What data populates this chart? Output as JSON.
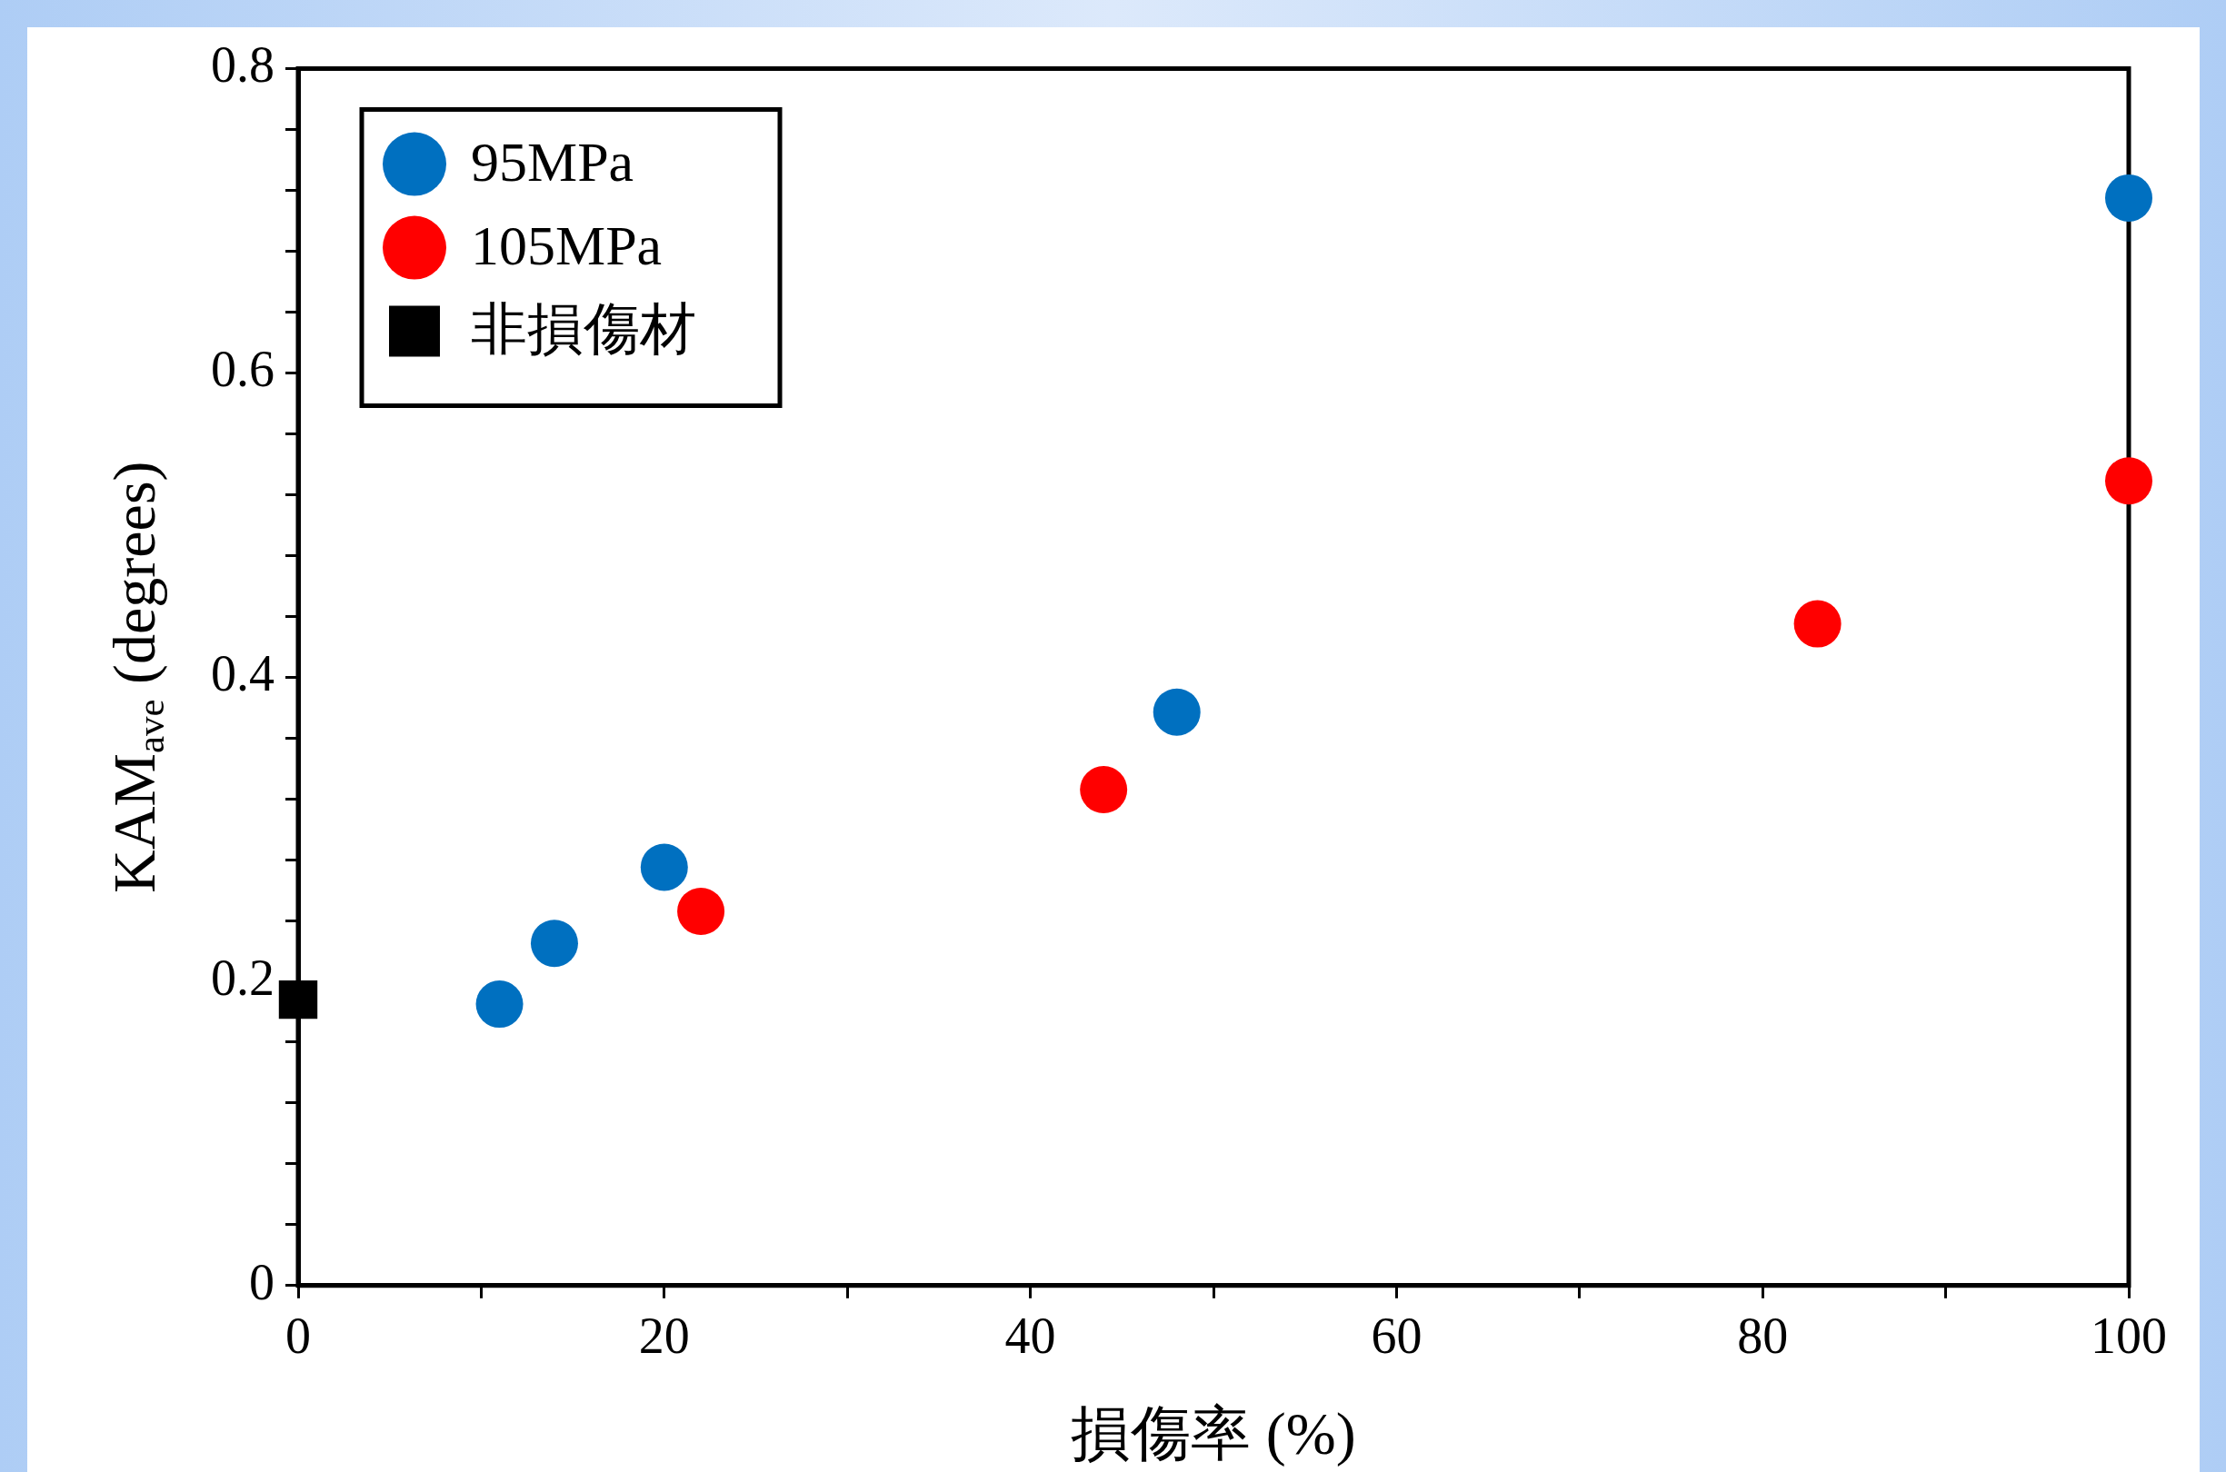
{
  "chart_data": {
    "type": "scatter",
    "xlabel": "損傷率 (%)",
    "ylabel": "KAM$_{ave}$ (degrees)",
    "xlim": [
      0,
      100
    ],
    "ylim": [
      0,
      0.8
    ],
    "xticks": [
      0,
      {
        "value": 10,
        "label": null
      },
      20,
      {
        "value": 30,
        "label": null
      },
      40,
      {
        "value": 50,
        "label": null
      },
      60,
      {
        "value": 70,
        "label": null
      },
      80,
      {
        "value": 90,
        "label": null
      },
      100
    ],
    "yticks": [
      0,
      {
        "value": 0.04,
        "label": null
      },
      {
        "value": 0.08,
        "label": null
      },
      {
        "value": 0.12,
        "label": null
      },
      {
        "value": 0.16,
        "label": null
      },
      0.2,
      {
        "value": 0.24,
        "label": null
      },
      {
        "value": 0.28,
        "label": null
      },
      {
        "value": 0.32,
        "label": null
      },
      {
        "value": 0.36,
        "label": null
      },
      0.4,
      {
        "value": 0.44,
        "label": null
      },
      {
        "value": 0.48,
        "label": null
      },
      {
        "value": 0.52,
        "label": null
      },
      {
        "value": 0.56,
        "label": null
      },
      0.6,
      {
        "value": 0.64,
        "label": null
      },
      {
        "value": 0.68,
        "label": null
      },
      {
        "value": 0.72,
        "label": null
      },
      {
        "value": 0.76,
        "label": null
      },
      0.8
    ],
    "grid": false,
    "legend": "top left",
    "series": [
      {
        "name": "95MPa",
        "color": "#0070c0",
        "marker": "circle",
        "x": [
          11,
          14,
          20,
          48,
          100
        ],
        "values": [
          0.185,
          0.225,
          0.275,
          0.377,
          0.715
        ]
      },
      {
        "name": "105MPa",
        "color": "#ff0000",
        "marker": "circle",
        "x": [
          22,
          44,
          83,
          100
        ],
        "values": [
          0.246,
          0.326,
          0.435,
          0.529
        ]
      },
      {
        "name": "非損傷材",
        "color": "#000000",
        "marker": "square",
        "x": [
          0
        ],
        "values": [
          0.188
        ]
      }
    ]
  }
}
